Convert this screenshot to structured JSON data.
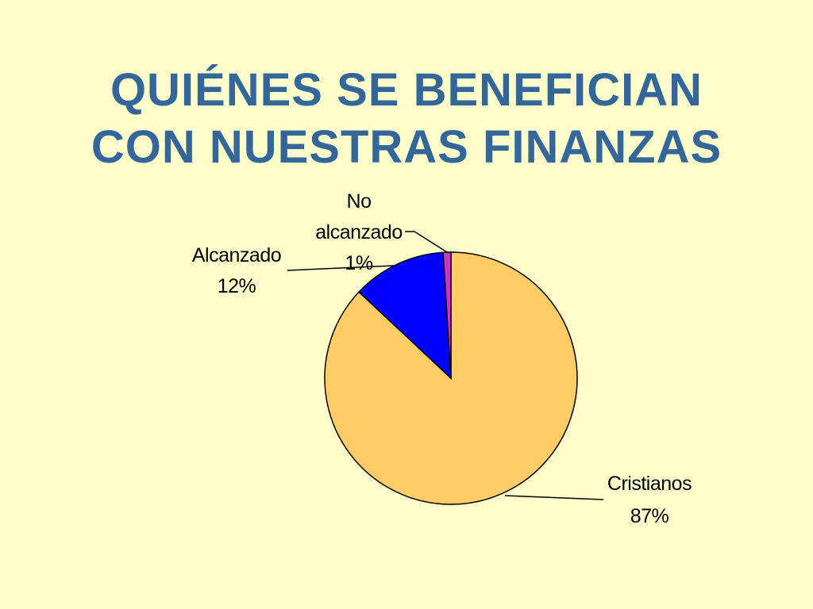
{
  "title": {
    "line1": "QUIÉNES SE BENEFICIAN",
    "line2": "CON NUESTRAS FINANZAS"
  },
  "colors": {
    "background": "#ffffcc",
    "title": "#336699"
  },
  "chart_data": {
    "type": "pie",
    "start_angle_deg": 0,
    "direction": "clockwise",
    "slices": [
      {
        "name": "Cristianos",
        "value": 87,
        "label_value": "87%",
        "color": "#ffcc66"
      },
      {
        "name": "Alcanzado",
        "value": 12,
        "label_value": "12%",
        "color": "#0000ff"
      },
      {
        "name": "No alcanzado",
        "value": 1,
        "label_value": "1%",
        "color": "#cc33cc"
      }
    ],
    "legend": "none",
    "data_labels": "outside-with-leader-lines"
  }
}
